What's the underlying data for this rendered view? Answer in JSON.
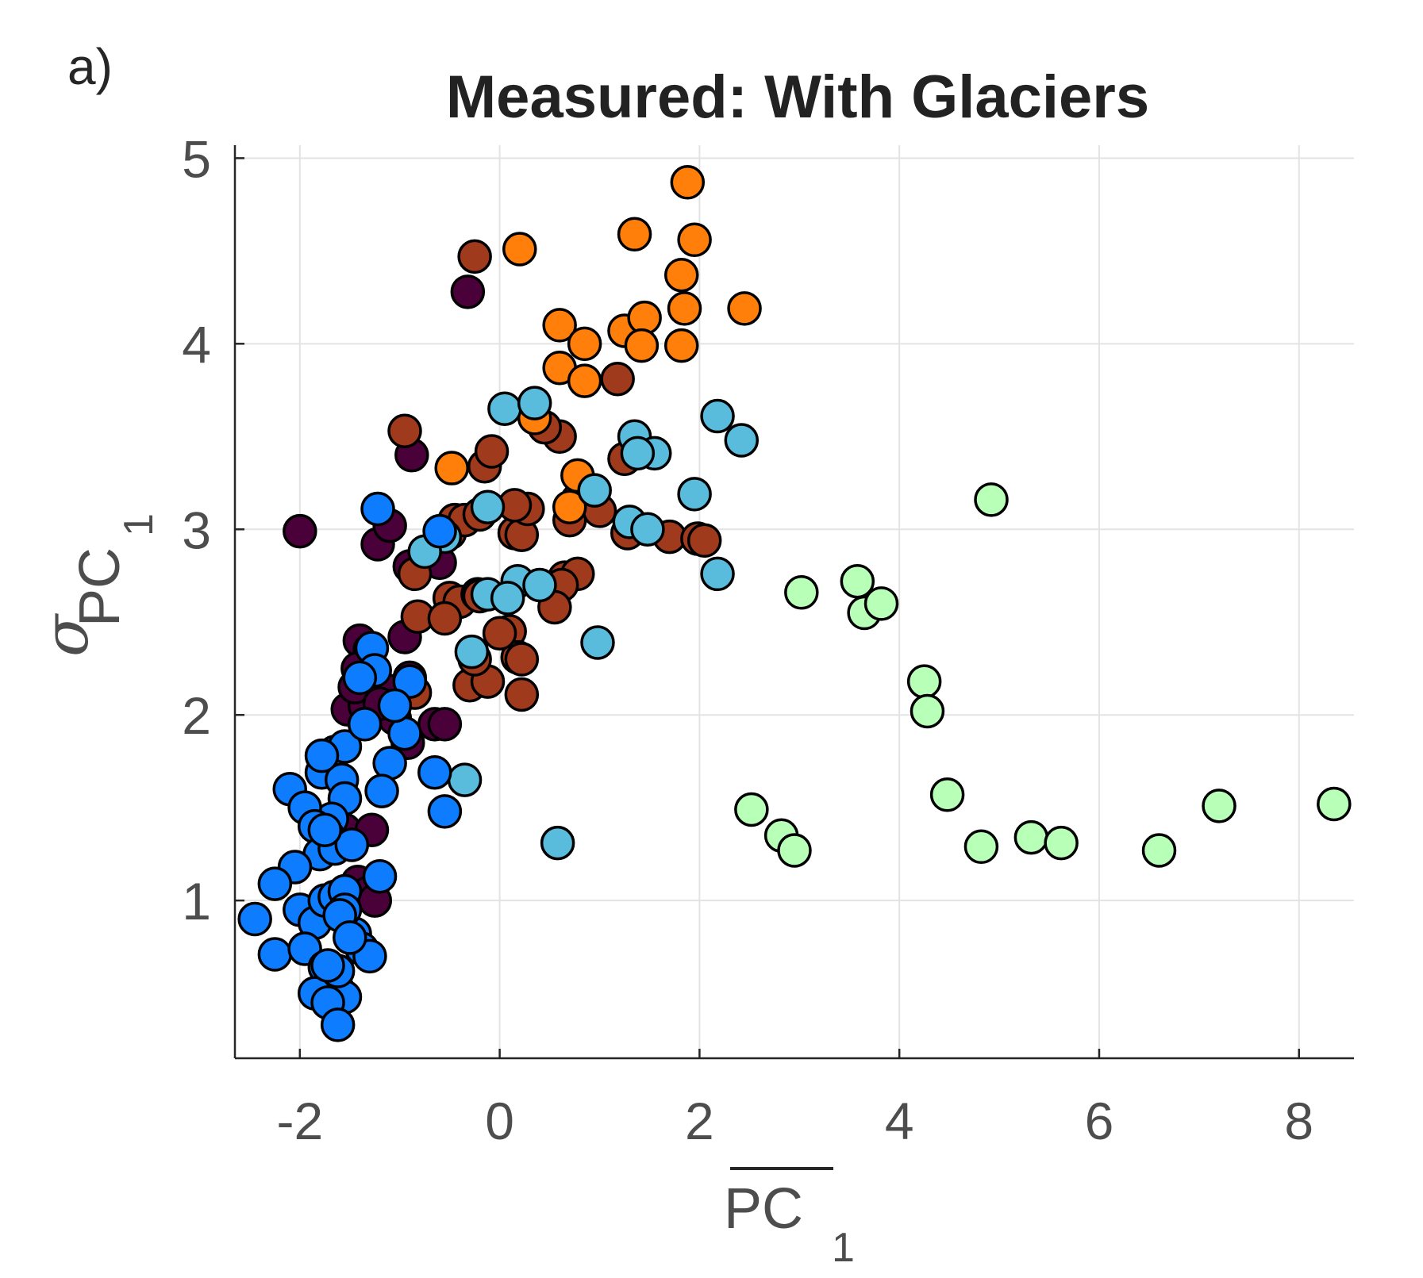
{
  "panel_label": "a)",
  "colors": {
    "dark_purple": "#4a0038",
    "rust": "#a03a1c",
    "orange": "#ff7f0a",
    "sky_blue": "#5abcdd",
    "blue": "#0d7cff",
    "light_green": "#b8ffb8"
  },
  "chart_data": {
    "type": "scatter",
    "title": "Measured: With Glaciers",
    "xlabel": "PC",
    "xlabel_sub": "1",
    "ylabel_symbol": "σ",
    "ylabel": "PC",
    "ylabel_sub": "1",
    "xlim": [
      -2.65,
      8.55
    ],
    "ylim": [
      0.15,
      5.07
    ],
    "xticks": [
      -2,
      0,
      2,
      4,
      6,
      8
    ],
    "xtick_labels": [
      "-2",
      "0",
      "2",
      "4",
      "6",
      "8"
    ],
    "yticks": [
      1,
      2,
      3,
      4,
      5
    ],
    "ytick_labels": [
      "1",
      "2",
      "3",
      "4",
      "5"
    ],
    "grid": true,
    "series": [
      {
        "color": "#4a0038",
        "x": [
          -0.32,
          -2.0,
          -1.22,
          -1.1,
          -0.88,
          -1.4,
          -1.3,
          -1.52,
          -1.42,
          -1.12,
          -0.95,
          -0.9,
          -1.35,
          -1.55,
          -0.6,
          -0.92,
          -1.28,
          -1.42,
          -1.32,
          -1.25,
          -1.05,
          -0.9,
          -0.65,
          -1.45,
          -1.2,
          -0.55
        ],
        "y": [
          4.28,
          2.99,
          2.92,
          3.02,
          3.4,
          2.4,
          2.35,
          2.03,
          2.25,
          2.13,
          2.42,
          2.8,
          2.05,
          1.38,
          2.82,
          1.85,
          1.38,
          1.1,
          1.04,
          1.0,
          1.98,
          2.2,
          1.95,
          2.15,
          2.06,
          1.95
        ]
      },
      {
        "color": "#a03a1c",
        "x": [
          -0.25,
          -0.95,
          -0.85,
          -0.5,
          -0.4,
          -0.22,
          -0.15,
          -0.08,
          0.15,
          0.22,
          0.28,
          0.6,
          0.7,
          0.78,
          0.9,
          1.0,
          1.18,
          1.25,
          1.28,
          1.7,
          1.98,
          2.05,
          -0.5,
          -0.45,
          -0.35,
          -0.2,
          0.05,
          0.1,
          0.18,
          0.45,
          0.65,
          0.78,
          -0.82,
          -0.55,
          -0.2,
          0.0,
          0.22,
          -0.3,
          -0.12,
          0.22,
          -0.85,
          -0.25,
          0.62,
          0.15,
          0.55
        ],
        "y": [
          4.47,
          3.53,
          2.76,
          2.63,
          2.61,
          2.65,
          3.34,
          3.42,
          2.98,
          2.97,
          3.11,
          3.5,
          3.05,
          3.16,
          3.15,
          3.1,
          3.81,
          3.38,
          2.98,
          2.96,
          2.95,
          2.94,
          2.98,
          3.05,
          3.05,
          3.08,
          2.44,
          2.45,
          2.31,
          3.55,
          2.74,
          2.76,
          2.53,
          2.52,
          2.64,
          2.44,
          2.11,
          2.16,
          2.18,
          2.3,
          2.12,
          2.3,
          2.7,
          3.13,
          2.58
        ]
      },
      {
        "color": "#ff7f0a",
        "x": [
          1.88,
          0.2,
          1.35,
          1.95,
          1.82,
          1.85,
          2.45,
          0.6,
          0.85,
          1.25,
          1.45,
          1.82,
          0.6,
          0.85,
          1.42,
          -0.48,
          0.78,
          0.7,
          0.35
        ],
        "y": [
          4.87,
          4.51,
          4.59,
          4.56,
          4.37,
          4.19,
          4.19,
          4.1,
          4.0,
          4.07,
          4.14,
          3.99,
          3.87,
          3.8,
          3.99,
          3.33,
          3.29,
          3.12,
          3.6
        ]
      },
      {
        "color": "#5abcdd",
        "x": [
          0.05,
          0.35,
          1.35,
          1.55,
          2.18,
          2.42,
          1.95,
          0.98,
          1.3,
          1.38,
          1.48,
          2.18,
          0.95,
          0.18,
          0.4,
          0.58,
          -0.28,
          -0.35,
          -0.12,
          -0.12,
          0.08,
          -0.55,
          -0.75
        ],
        "y": [
          3.65,
          3.68,
          3.5,
          3.41,
          3.61,
          3.48,
          3.19,
          2.39,
          3.04,
          3.41,
          3.0,
          2.76,
          3.21,
          2.72,
          2.7,
          1.31,
          2.34,
          1.65,
          3.12,
          2.65,
          2.63,
          2.96,
          2.88
        ]
      },
      {
        "color": "#0d7cff",
        "x": [
          -1.22,
          -1.28,
          -0.6,
          -1.65,
          -1.78,
          -1.55,
          -1.58,
          -1.1,
          -1.55,
          -1.68,
          -1.78,
          -2.1,
          -1.95,
          -1.85,
          -1.72,
          -1.8,
          -1.65,
          -1.48,
          -2.05,
          -2.25,
          -2.0,
          -2.45,
          -1.85,
          -1.75,
          -1.65,
          -1.55,
          -1.45,
          -1.38,
          -1.3,
          -2.25,
          -1.95,
          -1.75,
          -1.68,
          -1.62,
          -1.55,
          -1.85,
          -1.72,
          -1.62,
          -1.25,
          -0.95,
          -1.4,
          -1.35,
          -0.65,
          -0.55,
          -0.9,
          -1.05,
          -1.18,
          -1.55,
          -1.6,
          -1.5,
          -1.62,
          -1.72,
          -1.75,
          -1.2
        ],
        "y": [
          3.11,
          2.36,
          2.99,
          1.8,
          1.69,
          1.83,
          1.65,
          1.74,
          1.55,
          1.44,
          1.78,
          1.6,
          1.5,
          1.4,
          1.35,
          1.25,
          1.28,
          1.3,
          1.18,
          1.09,
          0.95,
          0.9,
          0.88,
          1.0,
          1.02,
          1.05,
          0.82,
          0.74,
          0.7,
          0.71,
          0.74,
          0.64,
          0.58,
          0.52,
          0.48,
          0.5,
          0.45,
          0.33,
          2.24,
          1.9,
          2.2,
          1.95,
          1.69,
          1.48,
          2.18,
          2.05,
          1.59,
          0.95,
          0.92,
          0.8,
          0.62,
          0.65,
          1.38,
          1.13
        ]
      },
      {
        "color": "#b8ffb8",
        "x": [
          4.92,
          3.02,
          3.58,
          3.65,
          3.82,
          4.25,
          4.28,
          4.48,
          2.52,
          2.82,
          2.95,
          4.82,
          5.32,
          5.62,
          6.6,
          7.2,
          8.35
        ],
        "y": [
          3.16,
          2.66,
          2.72,
          2.55,
          2.6,
          2.18,
          2.02,
          1.57,
          1.49,
          1.35,
          1.27,
          1.29,
          1.34,
          1.31,
          1.27,
          1.51,
          1.52
        ]
      }
    ]
  }
}
